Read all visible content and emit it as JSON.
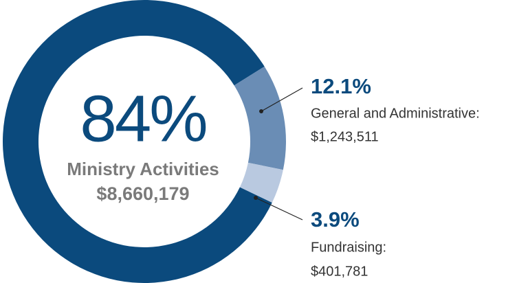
{
  "chart_data": {
    "type": "donut",
    "categories": [
      "Ministry Activities",
      "General and Administrative:",
      "Fundraising:"
    ],
    "values": [
      84,
      12.1,
      3.9
    ],
    "value_labels": [
      "84%",
      "12.1%",
      "3.9%"
    ],
    "amounts": [
      "$8,660,179",
      "$1,243,511",
      "$401,781"
    ],
    "colors": [
      "#0b4a7d",
      "#6a8db5",
      "#b9c9e0"
    ]
  }
}
